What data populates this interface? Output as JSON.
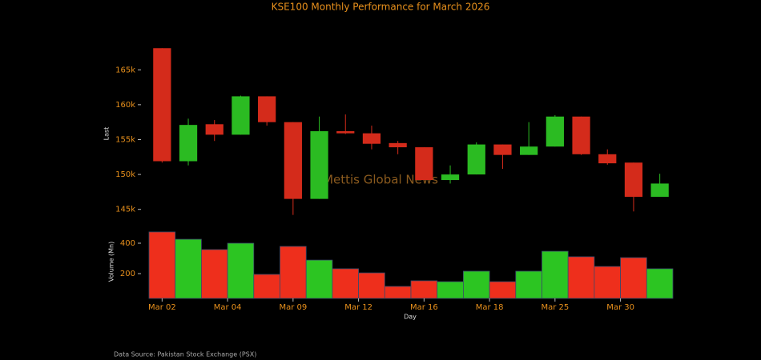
{
  "chart_data": [
    {
      "type": "candlestick",
      "title": "KSE100 Monthly Performance for March 2026",
      "ylabel": "Last",
      "watermark": "Mettis Global News",
      "up_color": "#2bbb22",
      "down_color": "#d42b1b",
      "xlim": [
        -0.5,
        19.5
      ],
      "ylim": [
        142900,
        168700
      ],
      "yticks": [
        {
          "value": 145000,
          "label": "145k"
        },
        {
          "value": 150000,
          "label": "150k"
        },
        {
          "value": 155000,
          "label": "155k"
        },
        {
          "value": 160000,
          "label": "160k"
        },
        {
          "value": 165000,
          "label": "165k"
        }
      ],
      "open": [
        168100,
        151900,
        157200,
        155700,
        161200,
        157500,
        146500,
        156200,
        155900,
        154500,
        153900,
        149200,
        150000,
        154300,
        152800,
        154000,
        158300,
        152900,
        151700,
        146800
      ],
      "high": [
        168100,
        158000,
        157800,
        161300,
        161200,
        157500,
        158300,
        158600,
        157000,
        154800,
        153900,
        151300,
        154600,
        154300,
        157500,
        158500,
        158300,
        153600,
        151700,
        150100
      ],
      "low": [
        151700,
        151300,
        154800,
        155700,
        157000,
        144200,
        146500,
        155800,
        153600,
        152900,
        149200,
        148700,
        150000,
        150800,
        152800,
        154000,
        152800,
        151400,
        144700,
        146800
      ],
      "close": [
        151900,
        157100,
        155700,
        161200,
        157500,
        146500,
        156200,
        155900,
        154400,
        153900,
        149200,
        150000,
        154300,
        152800,
        154000,
        158300,
        152900,
        151600,
        146800,
        148700
      ]
    },
    {
      "type": "bar",
      "ylabel": "Volume (Mn)",
      "xlabel": "Day",
      "source": "Data Source: Pakistan Stock Exchange (PSX)",
      "xlim": [
        -0.5,
        19.5
      ],
      "ylim": [
        37,
        500
      ],
      "yticks": [
        200,
        400
      ],
      "xticks": [
        {
          "value": 0,
          "label": "Mar 02"
        },
        {
          "value": 2.5,
          "label": "Mar 04"
        },
        {
          "value": 5,
          "label": "Mar 09"
        },
        {
          "value": 7.5,
          "label": "Mar 12"
        },
        {
          "value": 10,
          "label": "Mar 16"
        },
        {
          "value": 12.5,
          "label": "Mar 18"
        },
        {
          "value": 15,
          "label": "Mar 25"
        },
        {
          "value": 17.5,
          "label": "Mar 30"
        }
      ],
      "values": [
        474,
        426,
        358,
        400,
        195,
        379,
        289,
        232,
        205,
        116,
        153,
        147,
        216,
        147,
        216,
        347,
        311,
        247,
        305,
        232
      ],
      "colors": [
        "#ee2f1c",
        "#2cc522",
        "#ee2f1c",
        "#2cc522",
        "#ee2f1c",
        "#ee2f1c",
        "#2cc522",
        "#ee2f1c",
        "#ee2f1c",
        "#ee2f1c",
        "#ee2f1c",
        "#2cc522",
        "#2cc522",
        "#ee2f1c",
        "#2cc522",
        "#2cc522",
        "#ee2f1c",
        "#ee2f1c",
        "#ee2f1c",
        "#2cc522"
      ]
    }
  ]
}
